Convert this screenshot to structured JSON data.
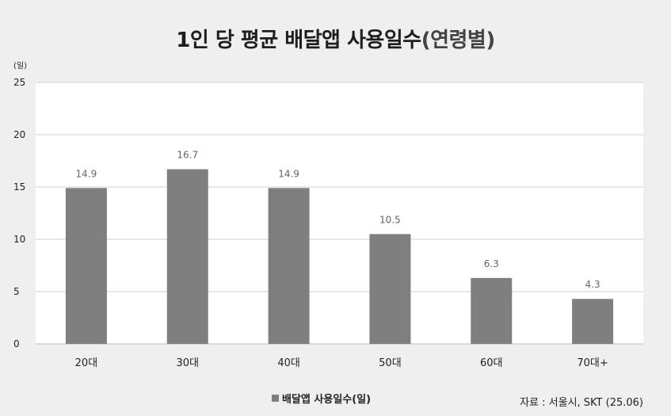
{
  "title": {
    "main": "1인 당 평균 배달앱 사용일수",
    "sub": "(연령별)"
  },
  "y_unit": "(일)",
  "source": "자료 : 서울시, SKT (25.06)",
  "colors": {
    "bar": "#7f7f7f",
    "background": "#efefef",
    "plot_bg": "#ffffff",
    "grid": "#d0d0d0"
  },
  "chart_data": {
    "type": "bar",
    "categories": [
      "20대",
      "30대",
      "40대",
      "50대",
      "60대",
      "70대+"
    ],
    "series": [
      {
        "name": "배달앱 사용일수(일)",
        "values": [
          14.9,
          16.7,
          14.9,
          10.5,
          6.3,
          4.3
        ]
      }
    ],
    "data_labels": [
      "14.9",
      "16.7",
      "14.9",
      "10.5",
      "6.3",
      "4.3"
    ],
    "yticks": [
      "0",
      "5",
      "10",
      "15",
      "20",
      "25"
    ],
    "ylim": [
      0,
      25
    ],
    "grid": true,
    "legend": "bottom"
  }
}
